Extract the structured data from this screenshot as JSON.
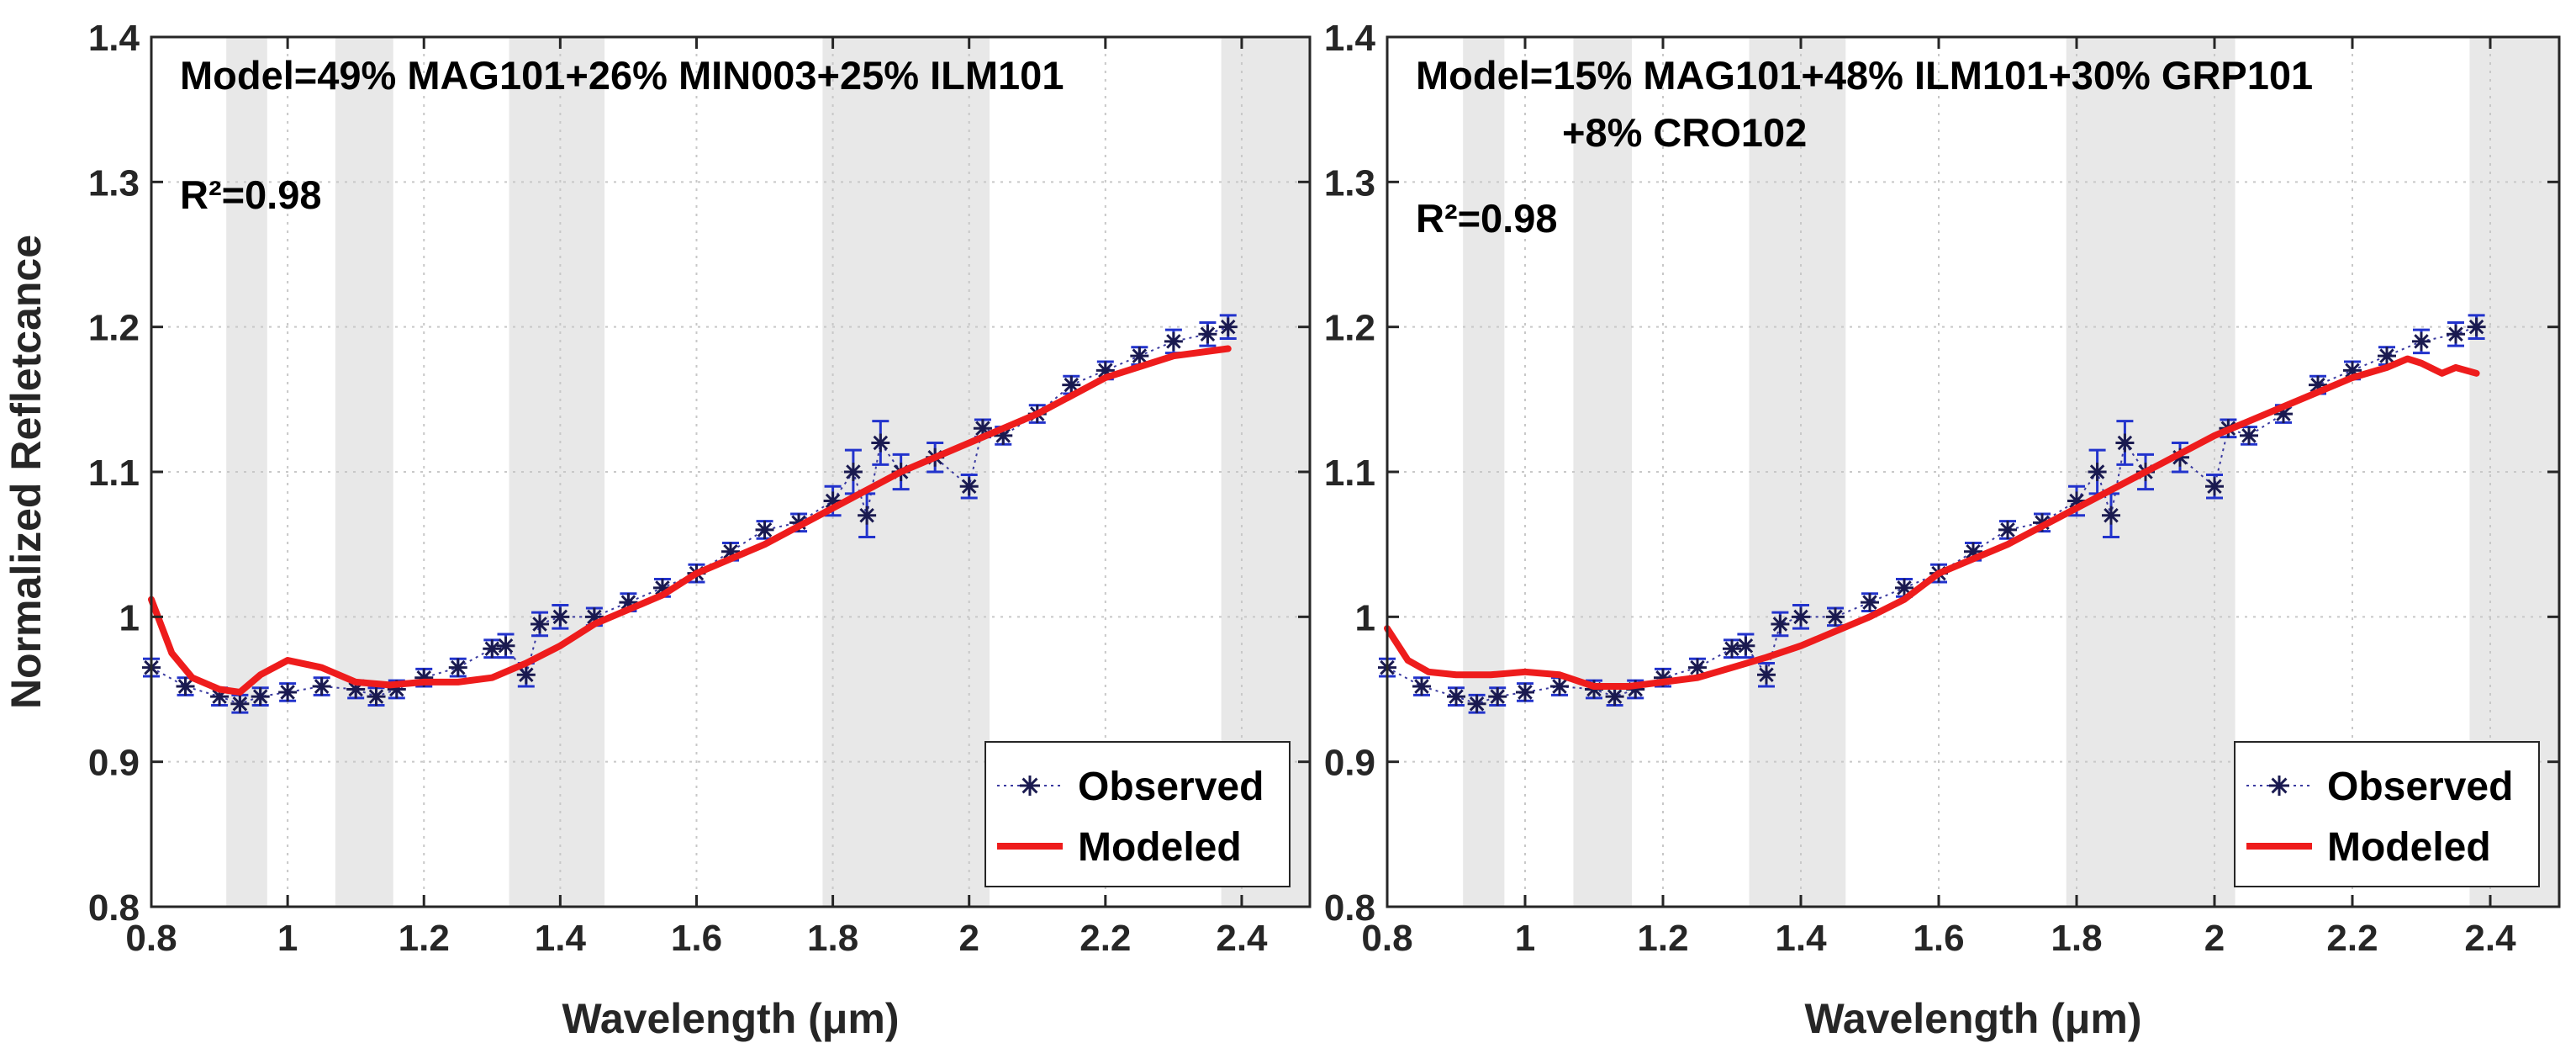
{
  "chart_data": [
    {
      "type": "line",
      "xlabel": "Wavelength (μm)",
      "ylabel": "Normalized Refletcance",
      "xlim": [
        0.8,
        2.5
      ],
      "ylim": [
        0.8,
        1.4
      ],
      "xticks": [
        "0.8",
        "1",
        "1.2",
        "1.4",
        "1.6",
        "1.8",
        "2",
        "2.2",
        "2.4"
      ],
      "yticks": [
        "0.8",
        "0.9",
        "1",
        "1.1",
        "1.2",
        "1.3",
        "1.4"
      ],
      "grid": true,
      "legend": "bottom-right",
      "legend_entries": [
        "Observed",
        "Modeled"
      ],
      "shaded_bands": [
        [
          0.91,
          0.97
        ],
        [
          1.07,
          1.155
        ],
        [
          1.325,
          1.465
        ],
        [
          1.785,
          2.03
        ],
        [
          2.37,
          2.5
        ]
      ],
      "annotation_model": "Model=49% MAG101+26% MIN003+25% ILM101",
      "annotation_model_line2": "",
      "annotation_r2": "R²=0.98",
      "series": [
        {
          "name": "Observed",
          "color": "#1a1a50",
          "error_color": "#2233cc",
          "x": [
            0.8,
            0.85,
            0.9,
            0.93,
            0.96,
            1.0,
            1.05,
            1.1,
            1.13,
            1.16,
            1.2,
            1.25,
            1.3,
            1.32,
            1.35,
            1.37,
            1.4,
            1.45,
            1.5,
            1.55,
            1.6,
            1.65,
            1.7,
            1.75,
            1.8,
            1.83,
            1.85,
            1.87,
            1.9,
            1.95,
            2.0,
            2.02,
            2.05,
            2.1,
            2.15,
            2.2,
            2.25,
            2.3,
            2.35,
            2.38
          ],
          "y": [
            0.965,
            0.952,
            0.945,
            0.94,
            0.945,
            0.948,
            0.952,
            0.95,
            0.945,
            0.95,
            0.958,
            0.965,
            0.978,
            0.98,
            0.96,
            0.995,
            1.0,
            1.0,
            1.01,
            1.02,
            1.03,
            1.045,
            1.06,
            1.065,
            1.08,
            1.1,
            1.07,
            1.12,
            1.1,
            1.11,
            1.09,
            1.13,
            1.125,
            1.14,
            1.16,
            1.17,
            1.18,
            1.19,
            1.195,
            1.2
          ],
          "err": [
            0.006,
            0.006,
            0.006,
            0.006,
            0.006,
            0.006,
            0.006,
            0.006,
            0.006,
            0.006,
            0.006,
            0.006,
            0.006,
            0.008,
            0.008,
            0.008,
            0.008,
            0.006,
            0.006,
            0.006,
            0.006,
            0.006,
            0.006,
            0.006,
            0.01,
            0.015,
            0.015,
            0.015,
            0.012,
            0.01,
            0.008,
            0.006,
            0.006,
            0.006,
            0.006,
            0.006,
            0.006,
            0.008,
            0.008,
            0.008
          ]
        },
        {
          "name": "Modeled",
          "color": "#ee1c1c",
          "x": [
            0.8,
            0.83,
            0.86,
            0.9,
            0.93,
            0.96,
            1.0,
            1.05,
            1.1,
            1.15,
            1.2,
            1.25,
            1.3,
            1.35,
            1.4,
            1.45,
            1.5,
            1.55,
            1.6,
            1.7,
            1.8,
            1.9,
            2.0,
            2.1,
            2.2,
            2.3,
            2.38
          ],
          "y": [
            1.012,
            0.975,
            0.958,
            0.95,
            0.948,
            0.96,
            0.97,
            0.965,
            0.955,
            0.953,
            0.955,
            0.955,
            0.958,
            0.968,
            0.98,
            0.995,
            1.005,
            1.015,
            1.03,
            1.05,
            1.075,
            1.1,
            1.12,
            1.14,
            1.165,
            1.18,
            1.185
          ]
        }
      ]
    },
    {
      "type": "line",
      "xlabel": "Wavelength (μm)",
      "ylabel": "",
      "xlim": [
        0.8,
        2.5
      ],
      "ylim": [
        0.8,
        1.4
      ],
      "xticks": [
        "0.8",
        "1",
        "1.2",
        "1.4",
        "1.6",
        "1.8",
        "2",
        "2.2",
        "2.4"
      ],
      "yticks": [
        "0.8",
        "0.9",
        "1",
        "1.1",
        "1.2",
        "1.3",
        "1.4"
      ],
      "grid": true,
      "legend": "bottom-right",
      "legend_entries": [
        "Observed",
        "Modeled"
      ],
      "shaded_bands": [
        [
          0.91,
          0.97
        ],
        [
          1.07,
          1.155
        ],
        [
          1.325,
          1.465
        ],
        [
          1.785,
          2.03
        ],
        [
          2.37,
          2.5
        ]
      ],
      "annotation_model": "Model=15% MAG101+48% ILM101+30% GRP101",
      "annotation_model_line2": "+8% CRO102",
      "annotation_r2": "R²=0.98",
      "series": [
        {
          "name": "Observed",
          "color": "#1a1a50",
          "error_color": "#2233cc",
          "x": [
            0.8,
            0.85,
            0.9,
            0.93,
            0.96,
            1.0,
            1.05,
            1.1,
            1.13,
            1.16,
            1.2,
            1.25,
            1.3,
            1.32,
            1.35,
            1.37,
            1.4,
            1.45,
            1.5,
            1.55,
            1.6,
            1.65,
            1.7,
            1.75,
            1.8,
            1.83,
            1.85,
            1.87,
            1.9,
            1.95,
            2.0,
            2.02,
            2.05,
            2.1,
            2.15,
            2.2,
            2.25,
            2.3,
            2.35,
            2.38
          ],
          "y": [
            0.965,
            0.952,
            0.945,
            0.94,
            0.945,
            0.948,
            0.952,
            0.95,
            0.945,
            0.95,
            0.958,
            0.965,
            0.978,
            0.98,
            0.96,
            0.995,
            1.0,
            1.0,
            1.01,
            1.02,
            1.03,
            1.045,
            1.06,
            1.065,
            1.08,
            1.1,
            1.07,
            1.12,
            1.1,
            1.11,
            1.09,
            1.13,
            1.125,
            1.14,
            1.16,
            1.17,
            1.18,
            1.19,
            1.195,
            1.2
          ],
          "err": [
            0.006,
            0.006,
            0.006,
            0.006,
            0.006,
            0.006,
            0.006,
            0.006,
            0.006,
            0.006,
            0.006,
            0.006,
            0.006,
            0.008,
            0.008,
            0.008,
            0.008,
            0.006,
            0.006,
            0.006,
            0.006,
            0.006,
            0.006,
            0.006,
            0.01,
            0.015,
            0.015,
            0.015,
            0.012,
            0.01,
            0.008,
            0.006,
            0.006,
            0.006,
            0.006,
            0.006,
            0.006,
            0.008,
            0.008,
            0.008
          ]
        },
        {
          "name": "Modeled",
          "color": "#ee1c1c",
          "x": [
            0.8,
            0.83,
            0.86,
            0.9,
            0.95,
            1.0,
            1.05,
            1.1,
            1.15,
            1.2,
            1.25,
            1.3,
            1.35,
            1.4,
            1.45,
            1.5,
            1.55,
            1.6,
            1.7,
            1.8,
            1.9,
            2.0,
            2.1,
            2.2,
            2.25,
            2.28,
            2.3,
            2.33,
            2.35,
            2.38
          ],
          "y": [
            0.992,
            0.97,
            0.962,
            0.96,
            0.96,
            0.962,
            0.96,
            0.952,
            0.952,
            0.955,
            0.958,
            0.965,
            0.972,
            0.98,
            0.99,
            1.0,
            1.012,
            1.03,
            1.05,
            1.075,
            1.1,
            1.125,
            1.145,
            1.165,
            1.172,
            1.178,
            1.175,
            1.168,
            1.172,
            1.168
          ]
        }
      ]
    }
  ]
}
